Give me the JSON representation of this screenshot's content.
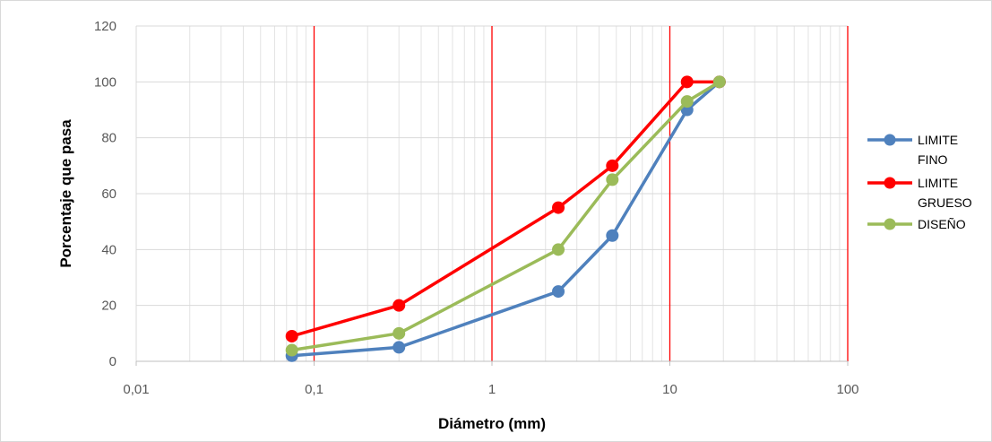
{
  "chart_data": {
    "type": "line",
    "xlabel": "Diámetro (mm)",
    "ylabel": "Porcentaje que pasa",
    "x_scale": "log",
    "xlim": [
      0.01,
      100
    ],
    "ylim": [
      0,
      120
    ],
    "x_ticks": [
      0.01,
      0.1,
      1,
      10,
      100
    ],
    "x_tick_labels": [
      "0,01",
      "0,1",
      "1",
      "10",
      "100"
    ],
    "y_ticks": [
      0,
      20,
      40,
      60,
      80,
      100,
      120
    ],
    "y_tick_labels": [
      "0",
      "20",
      "40",
      "60",
      "80",
      "100",
      "120"
    ],
    "grid": true,
    "reference_lines_x": [
      0.1,
      1,
      10,
      100
    ],
    "legend_position": "right",
    "series": [
      {
        "name": "LIMITE FINO",
        "legend_lines": [
          "LIMITE",
          "FINO"
        ],
        "color": "#4f81bd",
        "x": [
          0.075,
          0.3,
          2.36,
          4.75,
          12.5,
          19
        ],
        "y": [
          2,
          5,
          25,
          45,
          90,
          100
        ]
      },
      {
        "name": "LIMITE GRUESO",
        "legend_lines": [
          "LIMITE",
          "GRUESO"
        ],
        "color": "#ff0000",
        "x": [
          0.075,
          0.3,
          2.36,
          4.75,
          12.5,
          19
        ],
        "y": [
          9,
          20,
          55,
          70,
          100,
          100
        ]
      },
      {
        "name": "DISEÑO",
        "legend_lines": [
          "DISEÑO"
        ],
        "color": "#9bbb59",
        "x": [
          0.075,
          0.3,
          2.36,
          4.75,
          12.5,
          19
        ],
        "y": [
          4,
          10,
          40,
          65,
          93,
          100
        ]
      }
    ]
  }
}
